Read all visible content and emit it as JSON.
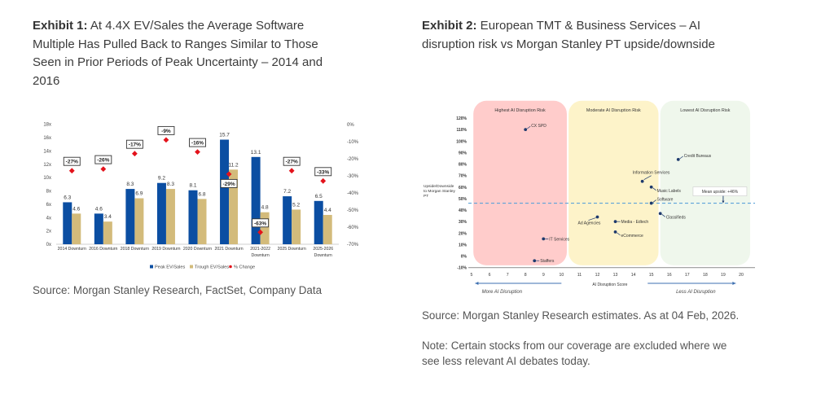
{
  "exhibit1": {
    "title_bold": "Exhibit 1:",
    "title_rest": " At 4.4X EV/Sales the Average Software Multiple Has Pulled Back to Ranges Similar to Those Seen in Prior Periods of Peak Uncertainty – 2014 and 2016",
    "source": "Source: Morgan Stanley Research, FactSet, Company Data",
    "chart_data": {
      "type": "bar",
      "title": "",
      "xlabel": "",
      "ylabel": "",
      "categories": [
        [
          "2014 Downturn"
        ],
        [
          "2016 Downturn"
        ],
        [
          "2018 Downturn"
        ],
        [
          "2019 Downturn"
        ],
        [
          "2020 Downturn"
        ],
        [
          "2021 Downturn"
        ],
        [
          "2021-2022",
          "Downturn"
        ],
        [
          "2025 Downturn"
        ],
        [
          "2025-2026",
          "Downturn"
        ]
      ],
      "series": [
        {
          "name": "Peak EV/Sales",
          "axis": "left",
          "color": "#0b4ea2",
          "values": [
            6.3,
            4.6,
            8.3,
            9.2,
            8.1,
            15.7,
            13.1,
            7.2,
            6.5
          ]
        },
        {
          "name": "Trough EV/Sales",
          "axis": "left",
          "color": "#d3bb7b",
          "values": [
            4.6,
            3.4,
            6.9,
            8.3,
            6.8,
            11.2,
            4.8,
            5.2,
            4.4
          ]
        },
        {
          "name": "% Change",
          "axis": "right",
          "type": "scatter",
          "marker": "diamond",
          "color": "#e3121b",
          "values": [
            -27,
            -26,
            -17,
            -9,
            -16,
            -29,
            -63,
            -27,
            -33
          ],
          "labels": [
            "-27%",
            "-26%",
            "-17%",
            "-9%",
            "-16%",
            "-29%",
            "-63%",
            "-27%",
            "-33%"
          ],
          "label_pos": [
            "above",
            "above",
            "above",
            "above",
            "above",
            "below",
            "above",
            "above",
            "above"
          ]
        }
      ],
      "value_labels": {
        "Peak EV/Sales": [
          "6.3",
          "4.6",
          "8.3",
          "9.2",
          "8.1",
          "15.7",
          "13.1",
          "7.2",
          "6.5"
        ],
        "Trough EV/Sales": [
          "4.6",
          "3.4",
          "6.9",
          "8.3",
          "6.8",
          "11.2",
          "4.8",
          "5.2",
          "4.4"
        ]
      },
      "y_left": {
        "min": 0,
        "max": 18,
        "ticks": [
          "0x",
          "2x",
          "4x",
          "6x",
          "8x",
          "10x",
          "12x",
          "14x",
          "16x",
          "18x"
        ]
      },
      "y_right": {
        "min": -70,
        "max": 0,
        "ticks": [
          "0%",
          "-10%",
          "-20%",
          "-30%",
          "-40%",
          "-50%",
          "-60%",
          "-70%"
        ]
      },
      "grid": false,
      "legend": {
        "placement": "bottom",
        "entries": [
          "Peak EV/Sales",
          "Trough EV/Sales",
          "% Change"
        ]
      }
    }
  },
  "exhibit2": {
    "title_bold": "Exhibit 2:",
    "title_rest": " European TMT & Business Services – AI disruption risk vs Morgan Stanley PT upside/downside",
    "source": "Source: Morgan Stanley Research estimates. As at 04 Feb, 2026.",
    "note": "Note: Certain stocks from our coverage are excluded where we see less relevant AI debates today.",
    "chart_data": {
      "type": "scatter",
      "title": "",
      "xlabel": "AI Disruption Score",
      "ylabel": [
        "Upside/Downside",
        "to Morgan Stanley",
        "PT"
      ],
      "xlim": [
        5,
        20
      ],
      "ylim": [
        -10,
        120
      ],
      "x_ticks": [
        "5",
        "6",
        "7",
        "8",
        "9",
        "10",
        "11",
        "12",
        "13",
        "14",
        "15",
        "16",
        "17",
        "18",
        "19",
        "20"
      ],
      "y_ticks": [
        "-10%",
        "0%",
        "10%",
        "20%",
        "30%",
        "40%",
        "50%",
        "60%",
        "70%",
        "80%",
        "90%",
        "100%",
        "110%",
        "120%"
      ],
      "grid": false,
      "zones": [
        {
          "label": "Highest AI Disruption Risk",
          "x_range": [
            5.1,
            10.3
          ],
          "y_range": [
            -8,
            135
          ],
          "color": "#ffcccb"
        },
        {
          "label": "Moderate AI Disruption Risk",
          "x_range": [
            10.4,
            15.4
          ],
          "y_range": [
            -8,
            135
          ],
          "color": "#fdf3c9"
        },
        {
          "label": "Lowest AI Disruption Risk",
          "x_range": [
            15.5,
            20.5
          ],
          "y_range": [
            -8,
            135
          ],
          "color": "#eff7ec"
        }
      ],
      "points": [
        {
          "label": "CX SPD",
          "x": 8,
          "y": 110,
          "label_pos": "right-up"
        },
        {
          "label": "Credit Bureaus",
          "x": 16.5,
          "y": 84,
          "label_pos": "right-up"
        },
        {
          "label": "Information Services",
          "x": 14.5,
          "y": 65,
          "label_pos": "above"
        },
        {
          "label": "Music Labels",
          "x": 15,
          "y": 60,
          "label_pos": "right-down"
        },
        {
          "label": "Software",
          "x": 15,
          "y": 46,
          "label_pos": "right-up"
        },
        {
          "label": "Classifieds",
          "x": 15.5,
          "y": 37,
          "label_pos": "right-down"
        },
        {
          "label": "Ad Agencies",
          "x": 12,
          "y": 34,
          "label_pos": "left-down"
        },
        {
          "label": "Media - Edtech",
          "x": 13,
          "y": 30,
          "label_pos": "right"
        },
        {
          "label": "eCommerce",
          "x": 13,
          "y": 21,
          "label_pos": "right-down"
        },
        {
          "label": "IT Services",
          "x": 9,
          "y": 15,
          "label_pos": "right"
        },
        {
          "label": "Staffers",
          "x": 8.5,
          "y": -4,
          "label_pos": "right"
        }
      ],
      "mean_line": {
        "value": 46,
        "label": "Mean upside: +46%",
        "label_x": 19
      },
      "point_color": "#1e3a6d",
      "line_color": "#5da3d9",
      "arrows": [
        {
          "label": "More AI Disruption",
          "direction": "left",
          "x_range": [
            5.2,
            10
          ]
        },
        {
          "label": "Less AI Disruption",
          "direction": "right",
          "x_range": [
            14.8,
            19.7
          ]
        }
      ]
    }
  }
}
